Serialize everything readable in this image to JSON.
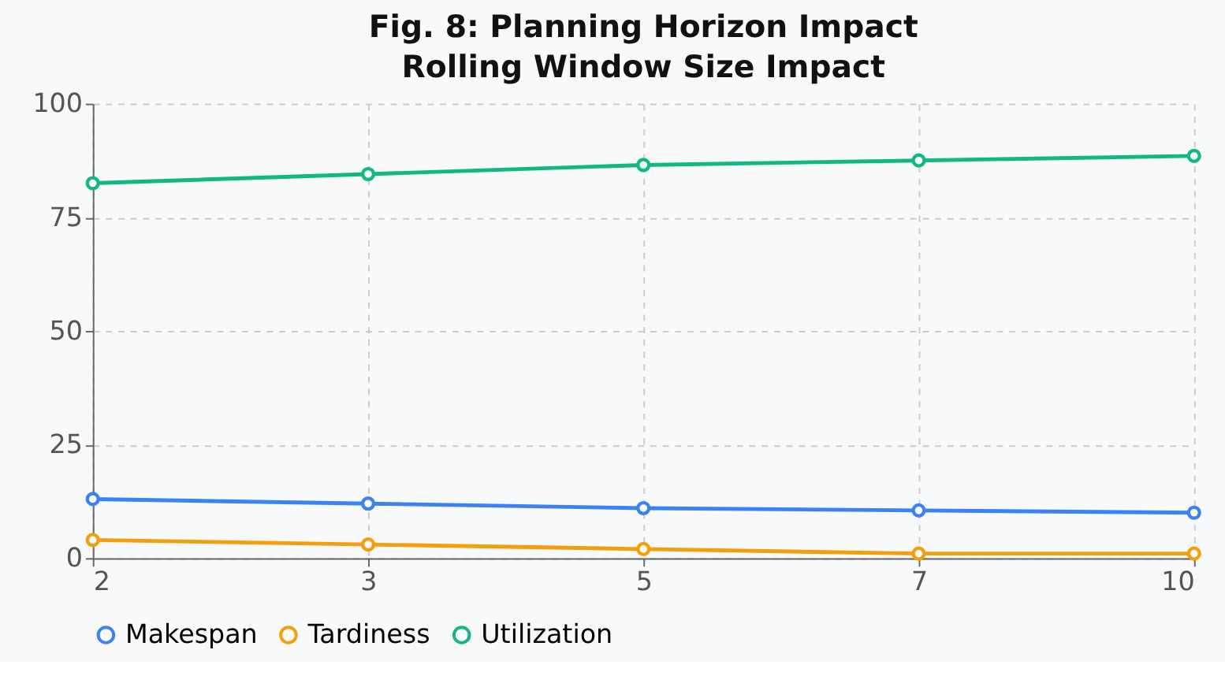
{
  "chart_data": {
    "type": "line",
    "title": "Rolling Window Size Impact",
    "annotations": [
      "Fig. 8: Planning Horizon Impact"
    ],
    "categories": [
      "2",
      "3",
      "5",
      "7",
      "10"
    ],
    "series": [
      {
        "name": "Makespan",
        "color": "#3b82f6",
        "values": [
          13,
          12,
          11,
          10.5,
          10
        ]
      },
      {
        "name": "Tardiness",
        "color": "#f59e0b",
        "values": [
          4,
          3,
          2,
          1,
          1
        ]
      },
      {
        "name": "Utilization",
        "color": "#10b981",
        "values": [
          82.5,
          84.5,
          86.5,
          87.5,
          88.5
        ]
      }
    ],
    "ylim": [
      0,
      100
    ],
    "yticks": [
      0,
      25,
      50,
      75,
      100
    ],
    "grid": true,
    "legend": "bottom",
    "marker": "circle",
    "line_style": "solid"
  }
}
